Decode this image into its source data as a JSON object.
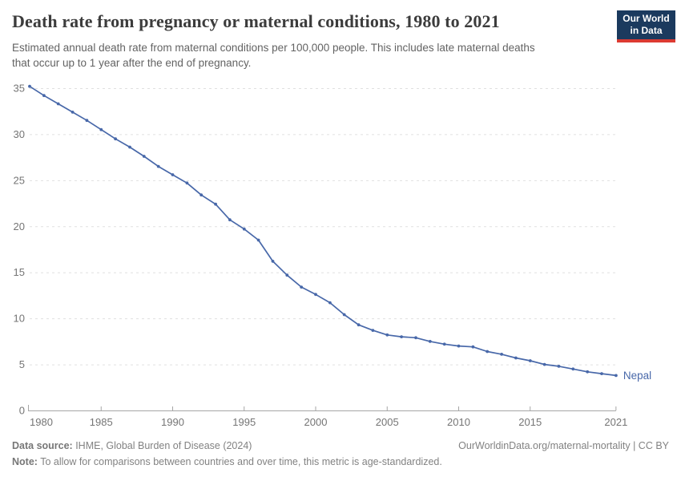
{
  "header": {
    "title": "Death rate from pregnancy or maternal conditions, 1980 to 2021",
    "subtitle": "Estimated annual death rate from maternal conditions per 100,000 people. This includes late maternal deaths\nthat occur up to 1 year after the end of pregnancy.",
    "logo": {
      "line1": "Our World",
      "line2": "in Data",
      "bg_color": "#1b3a5e",
      "bar_color": "#dc3a32"
    }
  },
  "chart_data": {
    "type": "line",
    "title": "Death rate from pregnancy or maternal conditions, 1980 to 2021",
    "xlabel": "",
    "ylabel": "",
    "xlim": [
      1980,
      2021
    ],
    "ylim": [
      0,
      35
    ],
    "grid": "horizontal-dashed",
    "x_ticks": [
      1980,
      1985,
      1990,
      1995,
      2000,
      2005,
      2010,
      2015,
      2021
    ],
    "y_ticks": [
      0,
      5,
      10,
      15,
      20,
      25,
      30,
      35
    ],
    "legend_position": "end-of-line",
    "series": [
      {
        "name": "Nepal",
        "color": "#4868a9",
        "x": [
          1980,
          1981,
          1982,
          1983,
          1984,
          1985,
          1986,
          1987,
          1988,
          1989,
          1990,
          1991,
          1992,
          1993,
          1994,
          1995,
          1996,
          1997,
          1998,
          1999,
          2000,
          2001,
          2002,
          2003,
          2004,
          2005,
          2006,
          2007,
          2008,
          2009,
          2010,
          2011,
          2012,
          2013,
          2014,
          2015,
          2016,
          2017,
          2018,
          2019,
          2020,
          2021
        ],
        "values": [
          35.2,
          34.2,
          33.3,
          32.4,
          31.5,
          30.5,
          29.5,
          28.6,
          27.6,
          26.5,
          25.6,
          24.7,
          23.4,
          22.4,
          20.7,
          19.7,
          18.5,
          16.2,
          14.7,
          13.4,
          12.6,
          11.7,
          10.4,
          9.3,
          8.7,
          8.2,
          8.0,
          7.9,
          7.5,
          7.2,
          7.0,
          6.9,
          6.4,
          6.1,
          5.7,
          5.4,
          5.0,
          4.8,
          4.5,
          4.2,
          4.0,
          3.8
        ]
      }
    ],
    "colors": {
      "gridline": "#e0e0e0",
      "axis": "#a6a6a6",
      "tick_label": "#757575"
    }
  },
  "footer": {
    "source_label": "Data source:",
    "source_text": " IHME, Global Burden of Disease (2024)",
    "link_text": "OurWorldinData.org/maternal-mortality | CC BY",
    "note_label": "Note:",
    "note_text": " To allow for comparisons between countries and over time, this metric is age-standardized."
  }
}
